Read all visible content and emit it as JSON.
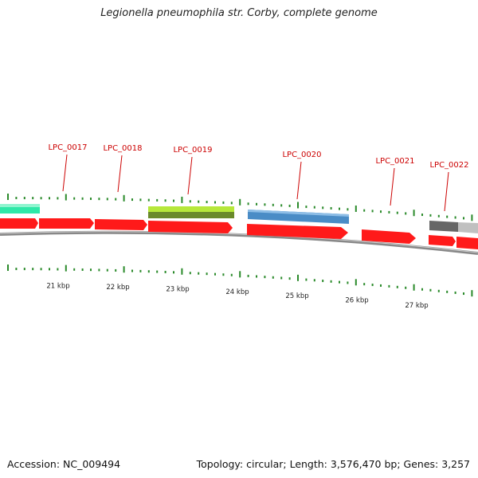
{
  "title": "Legionella pneumophila str. Corby, complete genome",
  "footer": {
    "accession": "Accession: NC_009494",
    "summary": "Topology: circular; Length: 3,576,470 bp; Genes: 3,257"
  },
  "colors": {
    "gene_forward": "#ff0000",
    "cds_teal": "#2ee8a8",
    "cds_green": "#9ad11c",
    "cds_blue": "#4a8cc6",
    "cds_gray": "#777777",
    "genome_line": "#888888",
    "tick": "#2a8a2a",
    "gene_label": "#cc0000"
  },
  "genes": [
    {
      "label": "LPC_0017"
    },
    {
      "label": "LPC_0018"
    },
    {
      "label": "LPC_0019"
    },
    {
      "label": "LPC_0020"
    },
    {
      "label": "LPC_0021"
    },
    {
      "label": "LPC_0022"
    }
  ],
  "scale_labels": [
    "21 kbp",
    "22 kbp",
    "23 kbp",
    "24 kbp",
    "25 kbp",
    "26 kbp",
    "27 kbp"
  ]
}
